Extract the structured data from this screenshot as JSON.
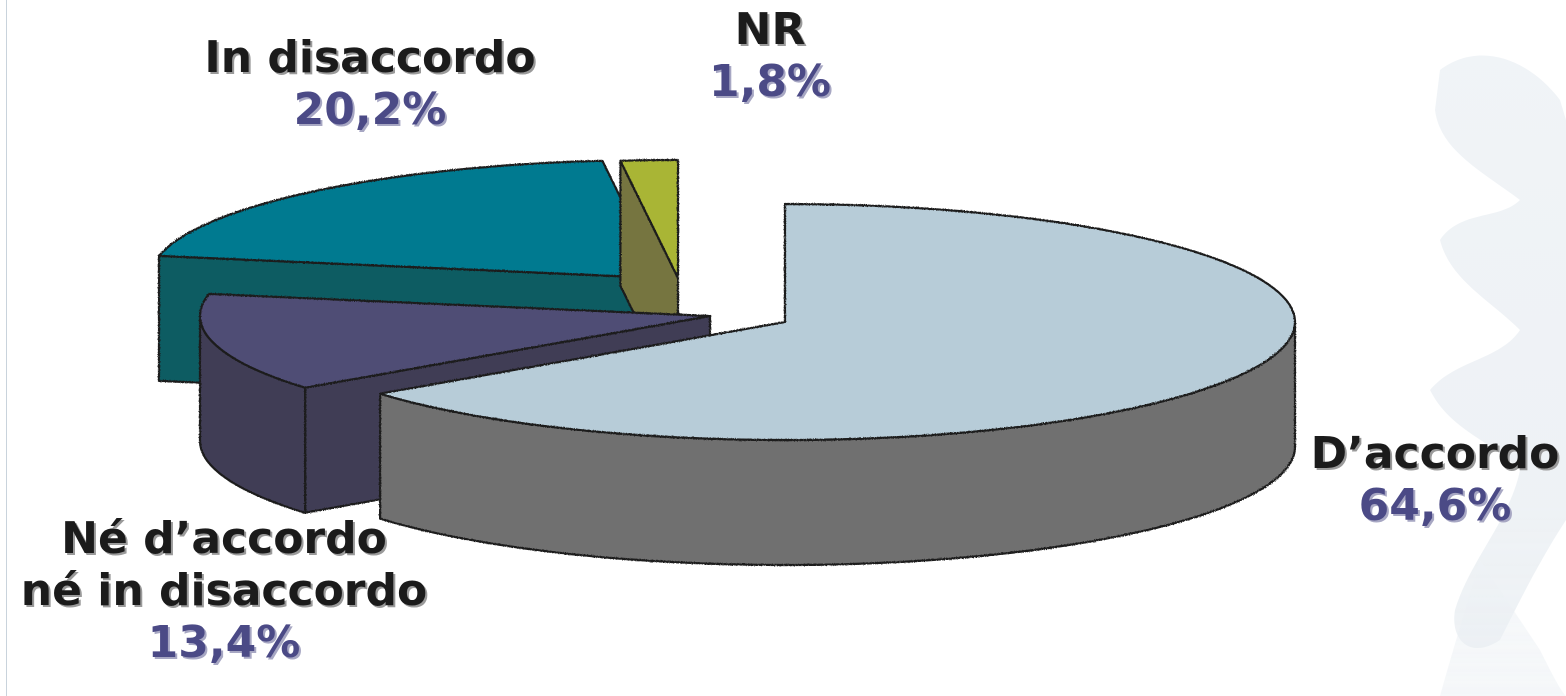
{
  "chart_data": {
    "type": "pie",
    "style": "3d-exploded",
    "slices": [
      {
        "label": "D’accordo",
        "value": 64.6,
        "value_label": "64,6%",
        "color": "#b7ccd8",
        "side_color": "#707070"
      },
      {
        "label": "Né d’accordo né in disaccordo",
        "label_lines": [
          "Né d’accordo",
          "né in disaccordo"
        ],
        "value": 13.4,
        "value_label": "13,4%",
        "color": "#504d75",
        "side_color": "#403d55"
      },
      {
        "label": "In disaccordo",
        "value": 20.2,
        "value_label": "20,2%",
        "color": "#007a90",
        "side_color": "#0e5c62"
      },
      {
        "label": "NR",
        "value": 1.8,
        "value_label": "1,8%",
        "color": "#a9b534",
        "side_color": "#76753f"
      }
    ]
  }
}
